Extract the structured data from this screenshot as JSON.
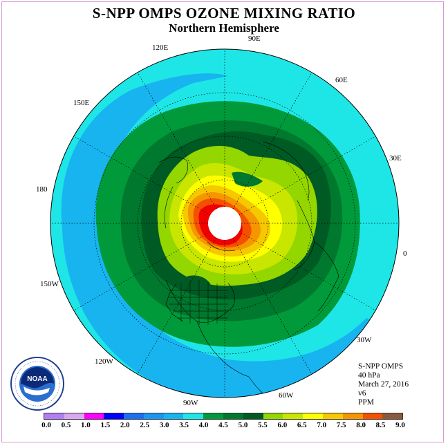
{
  "title": "S-NPP OMPS OZONE MIXING RATIO",
  "subtitle": "Northern Hemisphere",
  "longitude_labels": [
    "90E",
    "60E",
    "30E",
    "0",
    "30W",
    "60W",
    "90W",
    "120W",
    "150W",
    "180",
    "150E",
    "120E"
  ],
  "info": {
    "instrument": "S-NPP OMPS",
    "level": "40 hPa",
    "date": "March 27, 2016",
    "version": "v6",
    "units": "PPM"
  },
  "logo": {
    "text": "NOAA",
    "name": "noaa-logo"
  },
  "colorbar": {
    "ticks": [
      "0.0",
      "0.5",
      "1.0",
      "1.5",
      "2.0",
      "2.5",
      "3.0",
      "3.5",
      "4.0",
      "4.5",
      "5.0",
      "5.5",
      "6.0",
      "6.5",
      "7.0",
      "7.5",
      "8.0",
      "8.5",
      "9.0"
    ],
    "colors": [
      "#b27ff2",
      "#dba6f0",
      "#ff00ff",
      "#0000ff",
      "#1a6ef0",
      "#1a96f0",
      "#17b4f0",
      "#1ee6e6",
      "#009a3a",
      "#00782d",
      "#005a23",
      "#94d600",
      "#c8e600",
      "#ffff00",
      "#f5c800",
      "#f59600",
      "#f55000",
      "#f00000",
      "#8b5a3c"
    ]
  }
}
